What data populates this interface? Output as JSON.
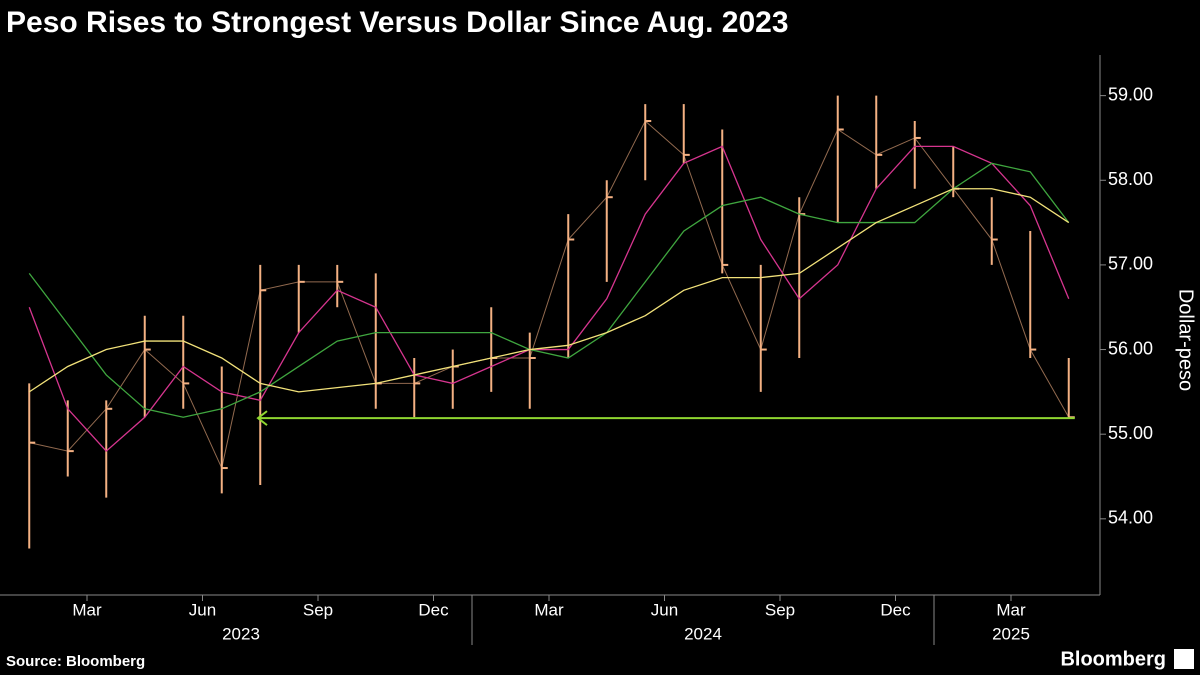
{
  "chart_data": {
    "type": "hilo",
    "title": "Peso Rises to Strongest Versus Dollar Since Aug. 2023",
    "y_label": "Dollar-peso",
    "x": [
      "2023-01",
      "2023-02",
      "2023-03",
      "2023-04",
      "2023-05",
      "2023-06",
      "2023-07",
      "2023-08",
      "2023-09",
      "2023-10",
      "2023-11",
      "2023-12",
      "2024-01",
      "2024-02",
      "2024-03",
      "2024-04",
      "2024-05",
      "2024-06",
      "2024-07",
      "2024-08",
      "2024-09",
      "2024-10",
      "2024-11",
      "2024-12",
      "2025-01",
      "2025-02",
      "2025-03",
      "2025-04"
    ],
    "high": [
      55.6,
      55.4,
      55.4,
      56.4,
      56.4,
      55.8,
      57.0,
      57.0,
      57.0,
      56.9,
      55.9,
      56.0,
      56.5,
      56.2,
      57.6,
      58.0,
      58.9,
      58.9,
      58.6,
      57.0,
      57.8,
      59.0,
      59.0,
      58.7,
      58.4,
      57.8,
      57.4,
      55.9
    ],
    "low": [
      53.65,
      54.5,
      54.25,
      55.2,
      55.3,
      54.3,
      54.4,
      56.2,
      56.5,
      55.3,
      55.2,
      55.3,
      55.5,
      55.3,
      55.9,
      56.8,
      58.0,
      58.2,
      56.9,
      55.5,
      55.9,
      57.5,
      57.9,
      57.9,
      57.8,
      57.0,
      55.9,
      55.19
    ],
    "close": [
      54.9,
      54.8,
      55.3,
      56.0,
      55.6,
      54.6,
      56.7,
      56.8,
      56.8,
      55.6,
      55.6,
      55.8,
      55.9,
      55.9,
      57.3,
      57.8,
      58.7,
      58.3,
      57.0,
      56.0,
      57.6,
      58.6,
      58.3,
      58.5,
      57.9,
      57.3,
      56.0,
      55.2
    ],
    "bar_color": "#f4b183",
    "ma_lines": [
      {
        "color": "#d6358f",
        "values": [
          56.5,
          55.3,
          54.8,
          55.2,
          55.8,
          55.5,
          55.4,
          56.2,
          56.7,
          56.5,
          55.7,
          55.6,
          55.8,
          56.0,
          56.0,
          56.6,
          57.6,
          58.2,
          58.4,
          57.3,
          56.6,
          57.0,
          57.9,
          58.4,
          58.4,
          58.2,
          57.7,
          56.6
        ]
      },
      {
        "color": "#3fa63f",
        "values": [
          56.9,
          56.3,
          55.7,
          55.3,
          55.2,
          55.3,
          55.5,
          55.8,
          56.1,
          56.2,
          56.2,
          56.2,
          56.2,
          56.0,
          55.9,
          56.2,
          56.8,
          57.4,
          57.7,
          57.8,
          57.6,
          57.5,
          57.5,
          57.5,
          57.9,
          58.2,
          58.1,
          57.5
        ]
      },
      {
        "color": "#f2e27a",
        "values": [
          55.5,
          55.8,
          56.0,
          56.1,
          56.1,
          55.9,
          55.6,
          55.5,
          55.55,
          55.6,
          55.7,
          55.8,
          55.9,
          56.0,
          56.05,
          56.2,
          56.4,
          56.7,
          56.85,
          56.85,
          56.9,
          57.2,
          57.5,
          57.7,
          57.9,
          57.9,
          57.8,
          57.5
        ]
      }
    ],
    "hline": {
      "value": 55.19,
      "color": "#8fd630"
    },
    "ylim": [
      53.1,
      59.48
    ],
    "yticks": [
      {
        "value": 54,
        "label": "54.00"
      },
      {
        "value": 55,
        "label": "55.00"
      },
      {
        "value": 56,
        "label": "56.00"
      },
      {
        "value": 57,
        "label": "57.00"
      },
      {
        "value": 58,
        "label": "58.00"
      },
      {
        "value": 59,
        "label": "59.00"
      }
    ],
    "xticks": [
      {
        "value": "2023-03",
        "label": "Mar"
      },
      {
        "value": "2023-06",
        "label": "Jun"
      },
      {
        "value": "2023-09",
        "label": "Sep"
      },
      {
        "value": "2023-12",
        "label": "Dec"
      },
      {
        "value": "2024-03",
        "label": "Mar"
      },
      {
        "value": "2024-06",
        "label": "Jun"
      },
      {
        "value": "2024-09",
        "label": "Sep"
      },
      {
        "value": "2024-12",
        "label": "Dec"
      },
      {
        "value": "2025-03",
        "label": "Mar"
      }
    ],
    "years": [
      "2023",
      "2024",
      "2025"
    ]
  },
  "footer": {
    "source": "Source: Bloomberg",
    "brand": "Bloomberg"
  }
}
